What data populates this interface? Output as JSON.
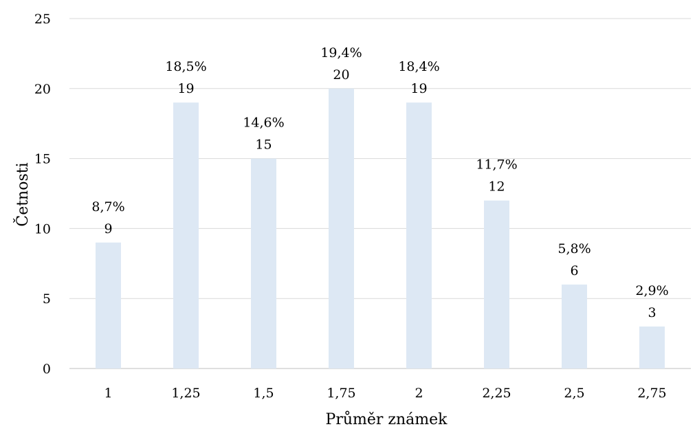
{
  "chart_data": {
    "type": "bar",
    "title": "",
    "xlabel": "Průměr známek",
    "ylabel": "Četnosti",
    "categories": [
      "1",
      "1,25",
      "1,5",
      "1,75",
      "2",
      "2,25",
      "2,5",
      "2,75"
    ],
    "values": [
      9,
      19,
      15,
      20,
      19,
      12,
      6,
      3
    ],
    "percent_labels": [
      "8,7%",
      "18,5%",
      "14,6%",
      "19,4%",
      "18,4%",
      "11,7%",
      "5,8%",
      "2,9%"
    ],
    "value_labels": [
      "9",
      "19",
      "15",
      "20",
      "19",
      "12",
      "6",
      "3"
    ],
    "ylim": [
      0,
      25
    ],
    "yticks": [
      "0",
      "5",
      "10",
      "15",
      "20",
      "25"
    ],
    "grid": true,
    "legend": "none",
    "colors": {
      "bar": "#dde8f4",
      "gridline": "#d9d9d9",
      "text": "#000000"
    }
  }
}
